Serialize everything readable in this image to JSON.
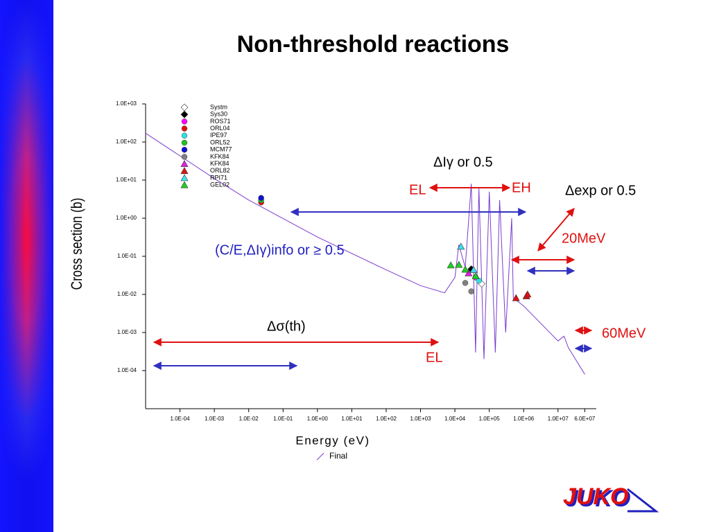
{
  "chart_data": {
    "type": "line",
    "title": "Non-threshold reactions",
    "xlabel": "Energy (eV)",
    "ylabel": "Cross section (b)",
    "xscale": "log",
    "yscale": "log",
    "xlim": [
      1e-05,
      130000000
    ],
    "ylim": [
      1e-05,
      1000
    ],
    "xticks": [
      {
        "value": 0.0001,
        "label": "1.0E-04"
      },
      {
        "value": 0.001,
        "label": "1.0E-03"
      },
      {
        "value": 0.01,
        "label": "1.0E-02"
      },
      {
        "value": 0.1,
        "label": "1.0E-01"
      },
      {
        "value": 1,
        "label": "1.0E+00"
      },
      {
        "value": 10,
        "label": "1.0E+01"
      },
      {
        "value": 100,
        "label": "1.0E+02"
      },
      {
        "value": 1000,
        "label": "1.0E+03"
      },
      {
        "value": 10000,
        "label": "1.0E+04"
      },
      {
        "value": 100000,
        "label": "1.0E+05"
      },
      {
        "value": 1000000,
        "label": "1.0E+06"
      },
      {
        "value": 10000000,
        "label": "1.0E+07"
      },
      {
        "value": 60000000,
        "label": "6.0E+07"
      }
    ],
    "yticks": [
      {
        "value": 1000,
        "label": "1.0E+03"
      },
      {
        "value": 100,
        "label": "1.0E+02"
      },
      {
        "value": 10,
        "label": "1.0E+01"
      },
      {
        "value": 1,
        "label": "1.0E+00"
      },
      {
        "value": 0.1,
        "label": "1.0E-01"
      },
      {
        "value": 0.01,
        "label": "1.0E-02"
      },
      {
        "value": 0.001,
        "label": "1.0E-03"
      },
      {
        "value": 0.0001,
        "label": "1.0E-04"
      }
    ],
    "series": [
      {
        "name": "Final",
        "color": "#7a3bd0",
        "x": [
          1e-05,
          0.001,
          0.01,
          1,
          100,
          1000,
          5000,
          10000,
          13000,
          20000,
          30000,
          40000,
          50000,
          70000,
          100000,
          150000,
          200000,
          300000,
          450000,
          500000,
          1000000,
          10000000,
          15000000,
          20000000,
          60000000
        ],
        "values": [
          170,
          11,
          3,
          0.32,
          0.044,
          0.017,
          0.011,
          0.028,
          0.2,
          0.052,
          8,
          0.0003,
          6,
          0.0002,
          5,
          0.0003,
          3,
          0.001,
          1,
          0.008,
          0.005,
          0.0006,
          0.0008,
          0.0004,
          8e-05
        ]
      },
      {
        "name": "Systm",
        "color": "#ffffff",
        "marker": "diamond",
        "x": [
          60000
        ],
        "values": [
          0.019
        ]
      },
      {
        "name": "Sys30",
        "color": "#000000",
        "marker": "diamond",
        "x": [
          30000
        ],
        "values": [
          0.046
        ]
      },
      {
        "name": "ROS71",
        "color": "#ff00ff",
        "marker": "circle",
        "x": [
          40000
        ],
        "values": [
          0.028
        ]
      },
      {
        "name": "ORL04",
        "color": "#e01010",
        "marker": "circle",
        "x": [
          0.023
        ],
        "values": [
          2.6
        ]
      },
      {
        "name": "IPE97",
        "color": "#30e0e0",
        "marker": "circle",
        "x": [
          50000
        ],
        "values": [
          0.023
        ]
      },
      {
        "name": "ORL52",
        "color": "#20c020",
        "marker": "circle",
        "x": [
          0.023
        ],
        "values": [
          3.0
        ]
      },
      {
        "name": "MCM77",
        "color": "#1010d0",
        "marker": "circle",
        "x": [
          0.023
        ],
        "values": [
          3.4
        ]
      },
      {
        "name": "KFK84",
        "color": "#808080",
        "marker": "circle",
        "x": [
          20000,
          30000
        ],
        "values": [
          0.02,
          0.012
        ]
      },
      {
        "name": "KFK84",
        "color": "#e020e0",
        "marker": "triangle",
        "x": [
          25000
        ],
        "values": [
          0.036
        ]
      },
      {
        "name": "ORL82",
        "color": "#e01010",
        "marker": "triangle",
        "x": [
          600000,
          1200000,
          1300000
        ],
        "values": [
          0.008,
          0.009,
          0.01
        ]
      },
      {
        "name": "RPI71",
        "color": "#40e0f0",
        "marker": "triangle",
        "x": [
          15000,
          35000
        ],
        "values": [
          0.18,
          0.044
        ]
      },
      {
        "name": "GEL02",
        "color": "#20d020",
        "marker": "triangle",
        "x": [
          7600,
          13000,
          20000,
          40000
        ],
        "values": [
          0.058,
          0.06,
          0.045,
          0.03
        ]
      }
    ],
    "annotations": [
      "ΔIγ or 0.5",
      "EL",
      "EH",
      "Δexp or 0.5",
      "20MeV",
      "(C/E,ΔIγ)info  or ≥ 0.5",
      "Δσ(th)",
      "60MeV",
      "EL"
    ]
  },
  "logo": "JUKO"
}
